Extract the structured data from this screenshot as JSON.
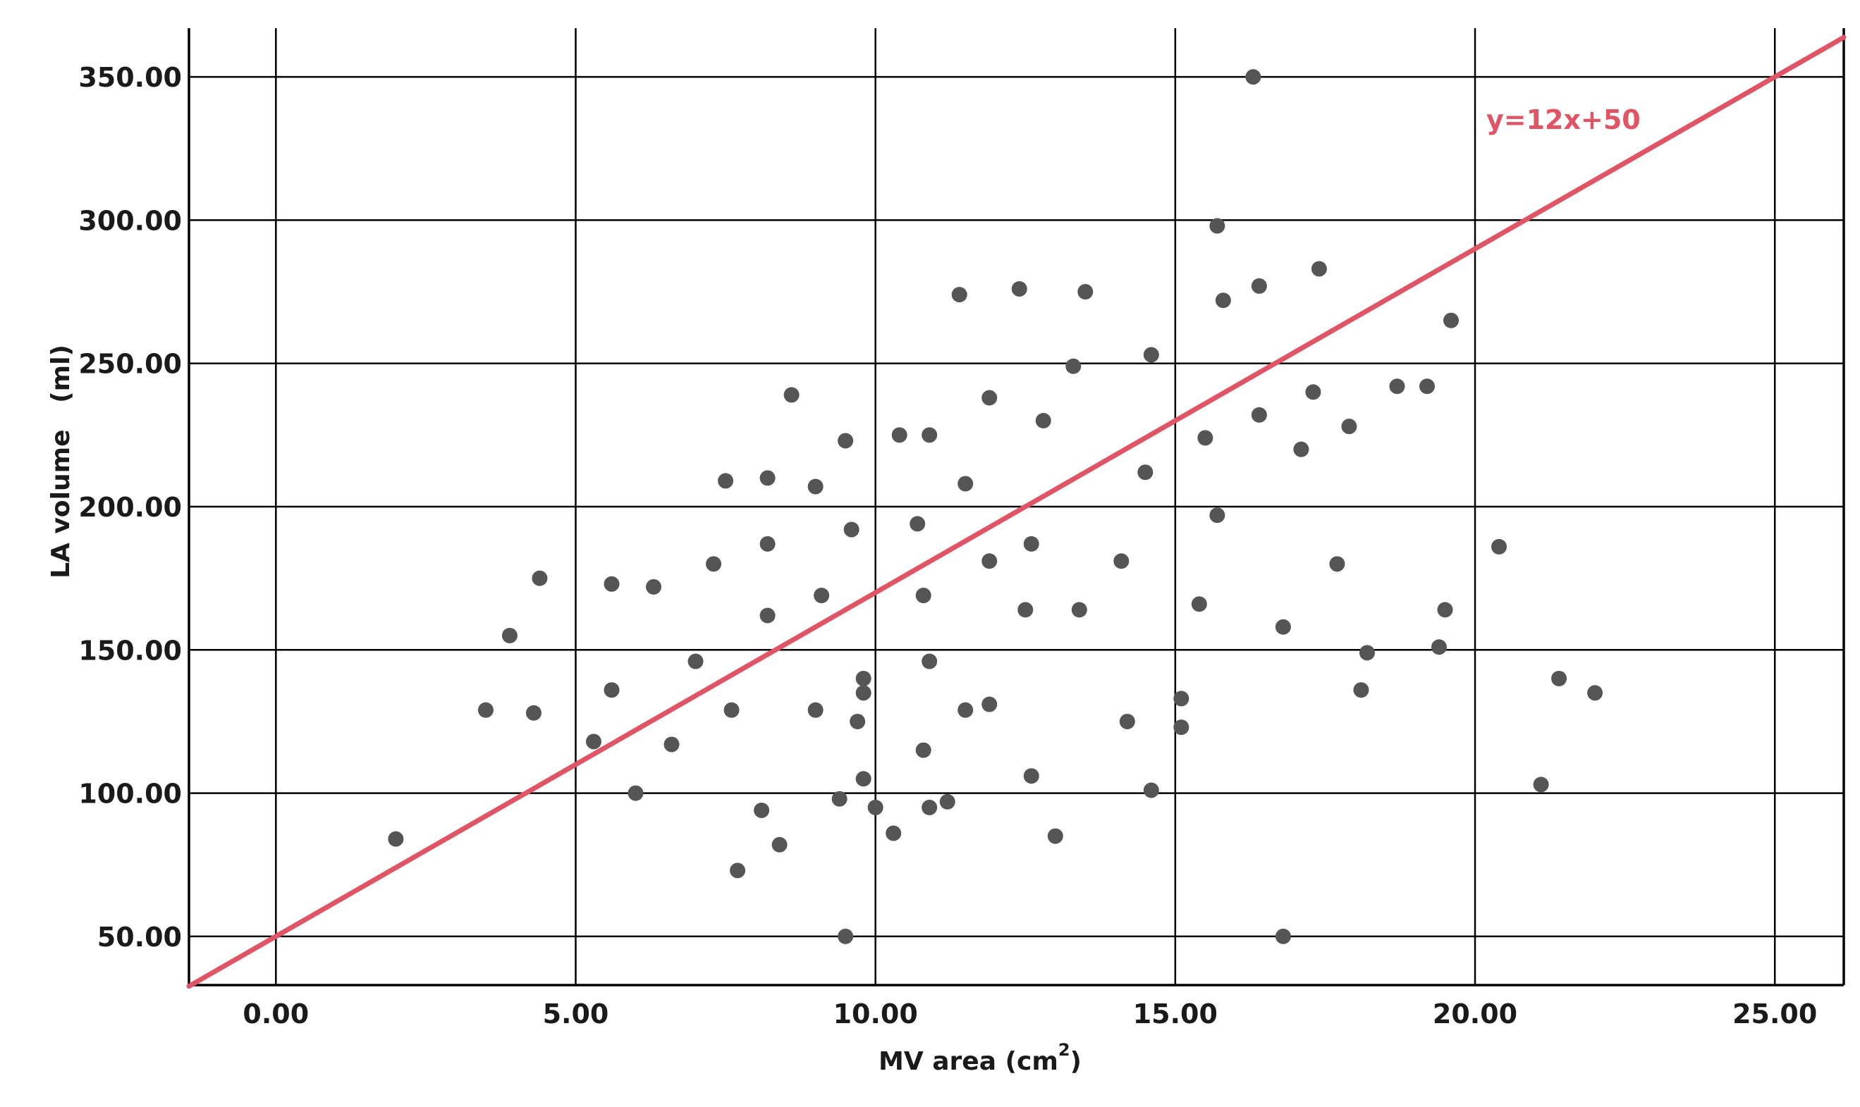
{
  "chart_data": {
    "type": "scatter",
    "title": "",
    "xlabel": "MV area (cm",
    "xlabel_superscript": "2",
    "xlabel_suffix": ")",
    "ylabel": "LA volume   (ml)",
    "xlim": [
      -1.45,
      26.15
    ],
    "ylim": [
      33,
      367
    ],
    "x_ticks": [
      "0.00",
      "5.00",
      "10.00",
      "15.00",
      "20.00",
      "25.00"
    ],
    "x_tick_values": [
      0,
      5,
      10,
      15,
      20,
      25
    ],
    "y_ticks": [
      "50.00",
      "100.00",
      "150.00",
      "200.00",
      "250.00",
      "300.00",
      "350.00"
    ],
    "y_tick_values": [
      50,
      100,
      150,
      200,
      250,
      300,
      350
    ],
    "grid": true,
    "points": [
      {
        "x": 2.0,
        "y": 84
      },
      {
        "x": 3.5,
        "y": 129
      },
      {
        "x": 3.9,
        "y": 155
      },
      {
        "x": 4.3,
        "y": 128
      },
      {
        "x": 4.4,
        "y": 175
      },
      {
        "x": 5.3,
        "y": 118
      },
      {
        "x": 5.6,
        "y": 136
      },
      {
        "x": 5.6,
        "y": 173
      },
      {
        "x": 6.0,
        "y": 100
      },
      {
        "x": 6.3,
        "y": 172
      },
      {
        "x": 6.6,
        "y": 117
      },
      {
        "x": 7.0,
        "y": 146
      },
      {
        "x": 7.3,
        "y": 180
      },
      {
        "x": 7.5,
        "y": 209
      },
      {
        "x": 7.6,
        "y": 129
      },
      {
        "x": 7.7,
        "y": 73
      },
      {
        "x": 8.1,
        "y": 94
      },
      {
        "x": 8.2,
        "y": 162
      },
      {
        "x": 8.2,
        "y": 187
      },
      {
        "x": 8.2,
        "y": 210
      },
      {
        "x": 8.4,
        "y": 82
      },
      {
        "x": 8.6,
        "y": 239
      },
      {
        "x": 9.0,
        "y": 207
      },
      {
        "x": 9.0,
        "y": 129
      },
      {
        "x": 9.1,
        "y": 169
      },
      {
        "x": 9.4,
        "y": 98
      },
      {
        "x": 9.5,
        "y": 223
      },
      {
        "x": 9.6,
        "y": 192
      },
      {
        "x": 9.5,
        "y": 50
      },
      {
        "x": 9.7,
        "y": 125
      },
      {
        "x": 9.8,
        "y": 135
      },
      {
        "x": 9.8,
        "y": 140
      },
      {
        "x": 9.8,
        "y": 105
      },
      {
        "x": 10.0,
        "y": 95
      },
      {
        "x": 10.3,
        "y": 86
      },
      {
        "x": 10.4,
        "y": 225
      },
      {
        "x": 10.7,
        "y": 194
      },
      {
        "x": 10.8,
        "y": 169
      },
      {
        "x": 10.8,
        "y": 115
      },
      {
        "x": 10.9,
        "y": 225
      },
      {
        "x": 10.9,
        "y": 95
      },
      {
        "x": 10.9,
        "y": 146
      },
      {
        "x": 11.2,
        "y": 97
      },
      {
        "x": 11.4,
        "y": 274
      },
      {
        "x": 11.5,
        "y": 129
      },
      {
        "x": 11.5,
        "y": 208
      },
      {
        "x": 11.9,
        "y": 131
      },
      {
        "x": 11.9,
        "y": 181
      },
      {
        "x": 11.9,
        "y": 238
      },
      {
        "x": 12.4,
        "y": 276
      },
      {
        "x": 12.5,
        "y": 164
      },
      {
        "x": 12.6,
        "y": 187
      },
      {
        "x": 12.6,
        "y": 106
      },
      {
        "x": 12.8,
        "y": 230
      },
      {
        "x": 13.0,
        "y": 85
      },
      {
        "x": 13.3,
        "y": 249
      },
      {
        "x": 13.4,
        "y": 164
      },
      {
        "x": 13.5,
        "y": 275
      },
      {
        "x": 14.1,
        "y": 181
      },
      {
        "x": 14.2,
        "y": 125
      },
      {
        "x": 14.5,
        "y": 212
      },
      {
        "x": 14.6,
        "y": 253
      },
      {
        "x": 14.6,
        "y": 101
      },
      {
        "x": 15.1,
        "y": 133
      },
      {
        "x": 15.1,
        "y": 123
      },
      {
        "x": 15.4,
        "y": 166
      },
      {
        "x": 15.5,
        "y": 224
      },
      {
        "x": 15.7,
        "y": 197
      },
      {
        "x": 15.7,
        "y": 298
      },
      {
        "x": 15.8,
        "y": 272
      },
      {
        "x": 16.3,
        "y": 350
      },
      {
        "x": 16.4,
        "y": 232
      },
      {
        "x": 16.4,
        "y": 277
      },
      {
        "x": 16.8,
        "y": 158
      },
      {
        "x": 16.8,
        "y": 50
      },
      {
        "x": 17.1,
        "y": 220
      },
      {
        "x": 17.3,
        "y": 240
      },
      {
        "x": 17.4,
        "y": 283
      },
      {
        "x": 17.7,
        "y": 180
      },
      {
        "x": 17.9,
        "y": 228
      },
      {
        "x": 18.1,
        "y": 136
      },
      {
        "x": 18.2,
        "y": 149
      },
      {
        "x": 18.7,
        "y": 242
      },
      {
        "x": 19.2,
        "y": 242
      },
      {
        "x": 19.4,
        "y": 151
      },
      {
        "x": 19.5,
        "y": 164
      },
      {
        "x": 19.6,
        "y": 265
      },
      {
        "x": 20.4,
        "y": 186
      },
      {
        "x": 21.1,
        "y": 103
      },
      {
        "x": 21.4,
        "y": 140
      },
      {
        "x": 22.0,
        "y": 135
      }
    ],
    "fit_line": {
      "slope": 12,
      "intercept": 50,
      "label": "y=12x+50",
      "color": "#e05566"
    }
  }
}
